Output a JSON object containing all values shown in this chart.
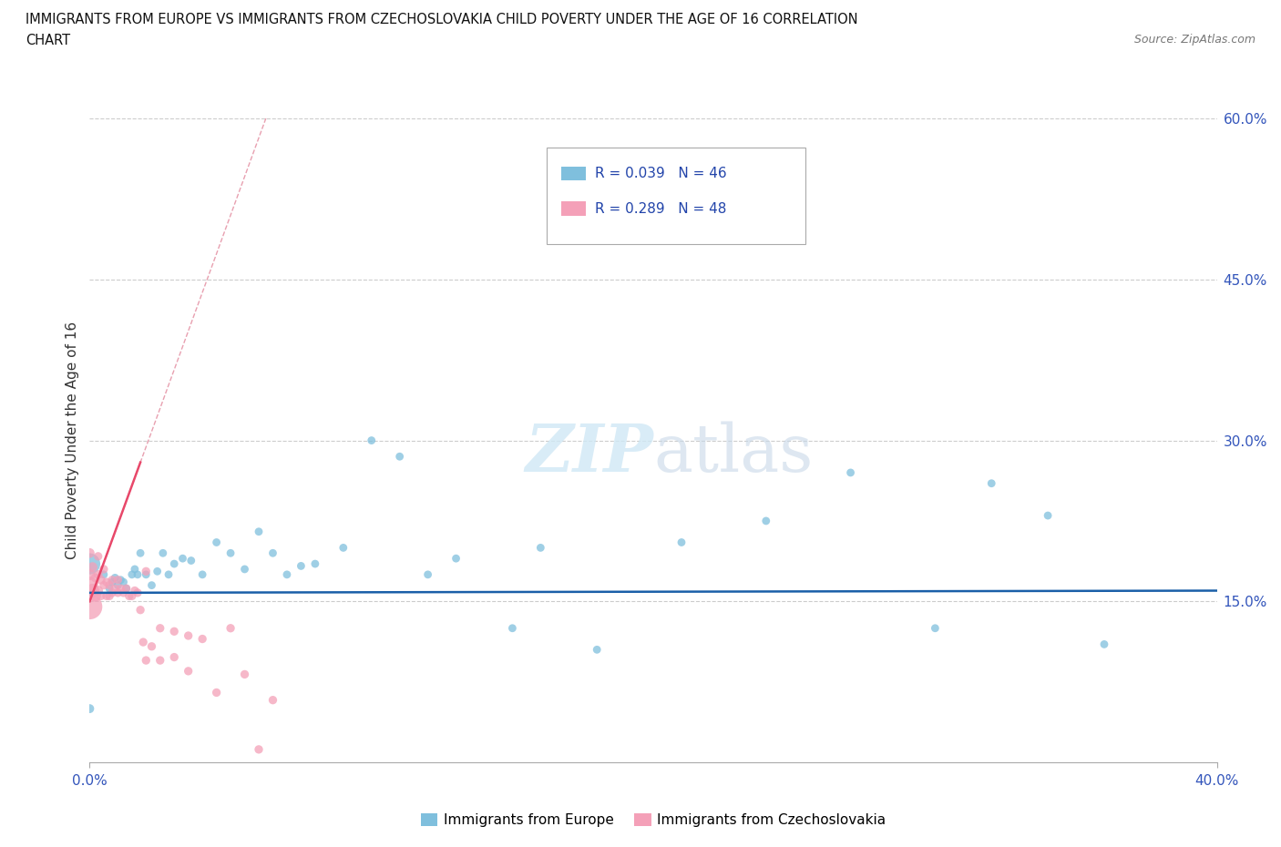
{
  "title_line1": "IMMIGRANTS FROM EUROPE VS IMMIGRANTS FROM CZECHOSLOVAKIA CHILD POVERTY UNDER THE AGE OF 16 CORRELATION",
  "title_line2": "CHART",
  "source": "Source: ZipAtlas.com",
  "ylabel_label": "Child Poverty Under the Age of 16",
  "legend_europe": "Immigrants from Europe",
  "legend_czech": "Immigrants from Czechoslovakia",
  "R_europe": 0.039,
  "N_europe": 46,
  "R_czech": 0.289,
  "N_czech": 48,
  "color_europe": "#7fbfdd",
  "color_czech": "#f4a0b8",
  "color_europe_line": "#1a5fa8",
  "color_czech_line": "#e8486a",
  "color_czech_dashed": "#e8a0b0",
  "watermark": "ZIPatlas",
  "europe_x": [
    0.0,
    0.0,
    0.005,
    0.007,
    0.008,
    0.009,
    0.01,
    0.011,
    0.012,
    0.013,
    0.015,
    0.016,
    0.017,
    0.018,
    0.02,
    0.022,
    0.024,
    0.026,
    0.028,
    0.03,
    0.033,
    0.036,
    0.04,
    0.045,
    0.05,
    0.055,
    0.06,
    0.065,
    0.07,
    0.075,
    0.08,
    0.09,
    0.1,
    0.11,
    0.12,
    0.13,
    0.15,
    0.16,
    0.18,
    0.21,
    0.24,
    0.27,
    0.3,
    0.32,
    0.34,
    0.36
  ],
  "europe_y": [
    0.05,
    0.185,
    0.175,
    0.162,
    0.168,
    0.172,
    0.165,
    0.17,
    0.168,
    0.162,
    0.175,
    0.18,
    0.175,
    0.195,
    0.175,
    0.165,
    0.178,
    0.195,
    0.175,
    0.185,
    0.19,
    0.188,
    0.175,
    0.205,
    0.195,
    0.18,
    0.215,
    0.195,
    0.175,
    0.183,
    0.185,
    0.2,
    0.3,
    0.285,
    0.175,
    0.19,
    0.125,
    0.2,
    0.105,
    0.205,
    0.225,
    0.27,
    0.125,
    0.26,
    0.23,
    0.11
  ],
  "europe_sizes": [
    50,
    280,
    40,
    40,
    40,
    40,
    40,
    40,
    40,
    40,
    40,
    40,
    40,
    40,
    40,
    40,
    40,
    40,
    40,
    40,
    40,
    40,
    40,
    40,
    40,
    40,
    40,
    40,
    40,
    40,
    40,
    40,
    40,
    40,
    40,
    40,
    40,
    40,
    40,
    40,
    40,
    40,
    40,
    40,
    40,
    40
  ],
  "czech_x": [
    0.0,
    0.0,
    0.0,
    0.0,
    0.001,
    0.001,
    0.002,
    0.002,
    0.003,
    0.003,
    0.003,
    0.004,
    0.004,
    0.005,
    0.005,
    0.006,
    0.006,
    0.007,
    0.007,
    0.008,
    0.008,
    0.009,
    0.01,
    0.01,
    0.011,
    0.012,
    0.013,
    0.014,
    0.015,
    0.016,
    0.017,
    0.018,
    0.019,
    0.02,
    0.022,
    0.025,
    0.03,
    0.035,
    0.04,
    0.045,
    0.05,
    0.055,
    0.06,
    0.065,
    0.02,
    0.025,
    0.03,
    0.035
  ],
  "czech_y": [
    0.145,
    0.165,
    0.175,
    0.195,
    0.16,
    0.182,
    0.155,
    0.172,
    0.16,
    0.175,
    0.192,
    0.17,
    0.155,
    0.165,
    0.18,
    0.155,
    0.168,
    0.155,
    0.165,
    0.158,
    0.17,
    0.162,
    0.158,
    0.17,
    0.162,
    0.158,
    0.162,
    0.155,
    0.155,
    0.16,
    0.158,
    0.142,
    0.112,
    0.095,
    0.108,
    0.095,
    0.122,
    0.118,
    0.115,
    0.065,
    0.125,
    0.082,
    0.012,
    0.058,
    0.178,
    0.125,
    0.098,
    0.085
  ],
  "czech_sizes": [
    400,
    180,
    80,
    60,
    120,
    60,
    80,
    50,
    60,
    50,
    45,
    50,
    45,
    45,
    45,
    45,
    45,
    45,
    45,
    45,
    45,
    45,
    45,
    45,
    45,
    45,
    45,
    45,
    45,
    45,
    45,
    45,
    45,
    45,
    45,
    45,
    45,
    45,
    45,
    45,
    45,
    45,
    45,
    45,
    45,
    45,
    45,
    45
  ],
  "xlim": [
    0.0,
    0.4
  ],
  "ylim": [
    0.0,
    0.6
  ],
  "xticks": [
    0.0,
    0.4
  ],
  "yticks_right": [
    0.15,
    0.3,
    0.45,
    0.6
  ],
  "ytick_labels": [
    "15.0%",
    "30.0%",
    "45.0%",
    "60.0%"
  ],
  "xtick_labels": [
    "0.0%",
    "40.0%"
  ]
}
